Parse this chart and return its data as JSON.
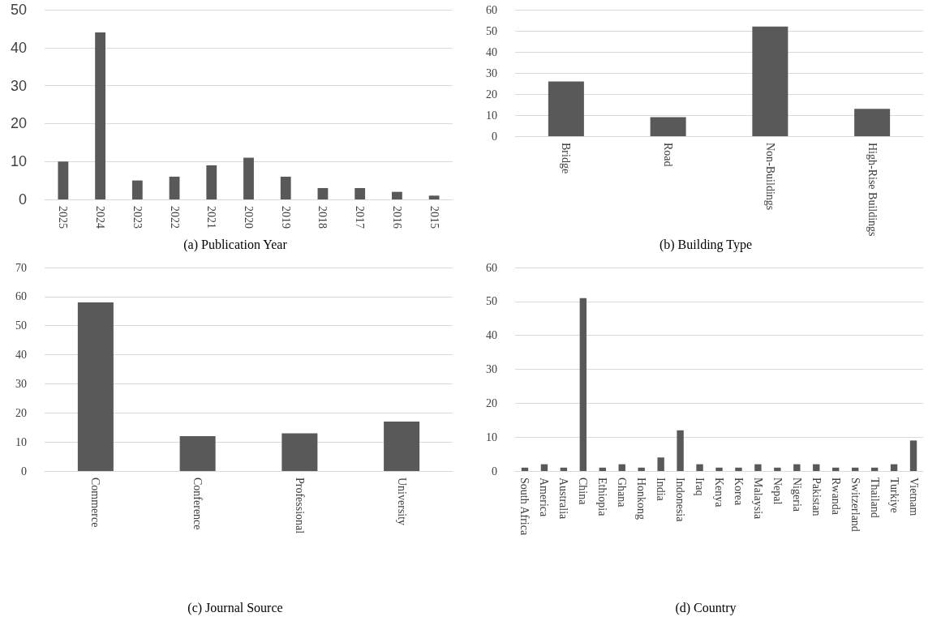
{
  "chart_data": [
    {
      "type": "bar",
      "title": "(a) Publication Year",
      "categories": [
        "2025",
        "2024",
        "2023",
        "2022",
        "2021",
        "2020",
        "2019",
        "2018",
        "2017",
        "2016",
        "2015"
      ],
      "values": [
        10,
        44,
        5,
        6,
        9,
        11,
        6,
        3,
        3,
        2,
        1
      ],
      "color": "#595959",
      "ylim": [
        0,
        50
      ],
      "yticks": [
        0,
        10,
        20,
        30,
        40,
        50
      ],
      "grid": "y"
    },
    {
      "type": "bar",
      "title": "(b) Building Type",
      "categories": [
        "Bridge",
        "Road",
        "Non-Buildings",
        "High-Rise Buildings"
      ],
      "values": [
        26,
        9,
        52,
        13
      ],
      "color": "#595959",
      "ylim": [
        0,
        60
      ],
      "yticks": [
        0,
        10,
        20,
        30,
        40,
        50,
        60
      ],
      "grid": "y"
    },
    {
      "type": "bar",
      "title": "(c) Journal Source",
      "categories": [
        "Commerce",
        "Conference",
        "Professional",
        "University"
      ],
      "values": [
        58,
        12,
        13,
        17
      ],
      "color": "#595959",
      "ylim": [
        0,
        70
      ],
      "yticks": [
        0,
        10,
        20,
        30,
        40,
        50,
        60,
        70
      ],
      "grid": "y"
    },
    {
      "type": "bar",
      "title": "(d) Country",
      "categories": [
        "South Africa",
        "America",
        "Australia",
        "China",
        "Ethiopia",
        "Ghana",
        "Honkong",
        "India",
        "Indonesia",
        "Iraq",
        "Kenya",
        "Korea",
        "Malaysia",
        "Nepal",
        "Nigeria",
        "Pakistan",
        "Rwanda",
        "Switzerland",
        "Thailand",
        "Turkiye",
        "Vietnam"
      ],
      "values": [
        1,
        2,
        1,
        51,
        1,
        2,
        1,
        4,
        12,
        2,
        1,
        1,
        2,
        1,
        2,
        2,
        1,
        1,
        1,
        2,
        9
      ],
      "color": "#595959",
      "ylim": [
        0,
        60
      ],
      "yticks": [
        0,
        10,
        20,
        30,
        40,
        50,
        60
      ],
      "grid": "y"
    }
  ]
}
